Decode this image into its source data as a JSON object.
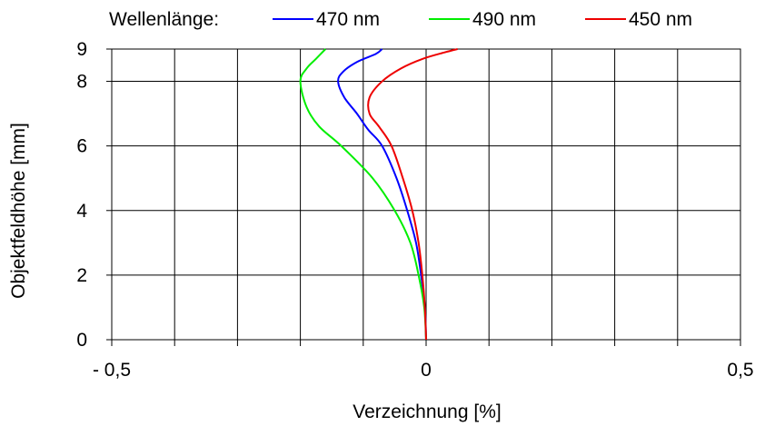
{
  "chart_data": {
    "type": "line",
    "title": "",
    "xlabel": "Verzeichnung [%]",
    "ylabel": "Objektfeldhöhe [mm]",
    "xlim": [
      -0.5,
      0.5
    ],
    "ylim": [
      0,
      9
    ],
    "grid": true,
    "legend": {
      "title": "Wellenlänge:",
      "placement": "top"
    },
    "x_ticks": [
      {
        "value": -0.5,
        "label": "- 0,5"
      },
      {
        "value": 0,
        "label": "0"
      },
      {
        "value": 0.5,
        "label": "0,5"
      }
    ],
    "y_ticks": [
      {
        "value": 0,
        "label": "0"
      },
      {
        "value": 2,
        "label": "2"
      },
      {
        "value": 4,
        "label": "4"
      },
      {
        "value": 6,
        "label": "6"
      },
      {
        "value": 8,
        "label": "8"
      },
      {
        "value": 9,
        "label": "9"
      }
    ],
    "series": [
      {
        "name": "470 nm",
        "color": "#0000ff",
        "points": [
          [
            0.0,
            0
          ],
          [
            -0.002,
            1.0
          ],
          [
            -0.008,
            2.0
          ],
          [
            -0.016,
            3.0
          ],
          [
            -0.03,
            4.0
          ],
          [
            -0.047,
            5.0
          ],
          [
            -0.07,
            6.0
          ],
          [
            -0.092,
            6.5
          ],
          [
            -0.11,
            7.0
          ],
          [
            -0.13,
            7.5
          ],
          [
            -0.14,
            8.0
          ],
          [
            -0.132,
            8.3
          ],
          [
            -0.11,
            8.6
          ],
          [
            -0.08,
            8.85
          ],
          [
            -0.07,
            9.0
          ]
        ]
      },
      {
        "name": "490 nm",
        "color": "#00ee00",
        "points": [
          [
            0.0,
            0
          ],
          [
            -0.003,
            1.0
          ],
          [
            -0.012,
            2.0
          ],
          [
            -0.025,
            3.0
          ],
          [
            -0.05,
            4.0
          ],
          [
            -0.085,
            5.0
          ],
          [
            -0.135,
            6.0
          ],
          [
            -0.17,
            6.6
          ],
          [
            -0.19,
            7.2
          ],
          [
            -0.2,
            8.0
          ],
          [
            -0.19,
            8.4
          ],
          [
            -0.175,
            8.7
          ],
          [
            -0.16,
            9.0
          ]
        ]
      },
      {
        "name": "450 nm",
        "color": "#ee0000",
        "points": [
          [
            0.0,
            0
          ],
          [
            -0.002,
            1.0
          ],
          [
            -0.006,
            2.0
          ],
          [
            -0.012,
            3.0
          ],
          [
            -0.022,
            4.0
          ],
          [
            -0.037,
            5.0
          ],
          [
            -0.055,
            6.0
          ],
          [
            -0.075,
            6.6
          ],
          [
            -0.09,
            7.0
          ],
          [
            -0.09,
            7.5
          ],
          [
            -0.07,
            8.0
          ],
          [
            -0.04,
            8.4
          ],
          [
            -0.005,
            8.7
          ],
          [
            0.03,
            8.9
          ],
          [
            0.05,
            9.0
          ]
        ]
      }
    ]
  }
}
